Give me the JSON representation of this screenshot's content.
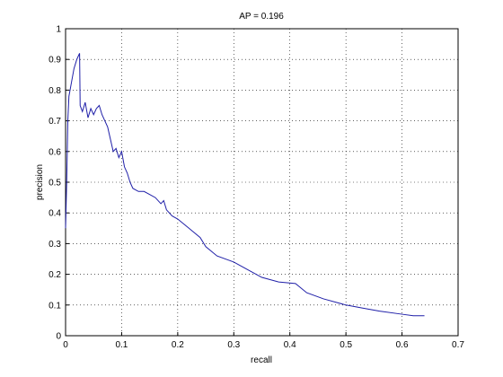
{
  "chart_data": {
    "type": "line",
    "title": "AP = 0.196",
    "x_label": "recall",
    "y_label": "precision",
    "x": [
      0,
      0.002,
      0.004,
      0.006,
      0.01,
      0.015,
      0.02,
      0.025,
      0.026,
      0.03,
      0.035,
      0.04,
      0.045,
      0.05,
      0.055,
      0.06,
      0.065,
      0.07,
      0.075,
      0.08,
      0.085,
      0.09,
      0.095,
      0.1,
      0.105,
      0.11,
      0.115,
      0.12,
      0.13,
      0.14,
      0.15,
      0.16,
      0.17,
      0.175,
      0.18,
      0.19,
      0.2,
      0.22,
      0.24,
      0.25,
      0.27,
      0.3,
      0.32,
      0.35,
      0.38,
      0.41,
      0.43,
      0.46,
      0.5,
      0.53,
      0.56,
      0.6,
      0.62,
      0.64
    ],
    "series": [
      {
        "name": "precision",
        "color": "#1f1fa8",
        "values": [
          0.35,
          0.5,
          0.7,
          0.78,
          0.82,
          0.87,
          0.9,
          0.92,
          0.75,
          0.73,
          0.76,
          0.71,
          0.74,
          0.72,
          0.74,
          0.75,
          0.72,
          0.7,
          0.68,
          0.64,
          0.6,
          0.61,
          0.58,
          0.6,
          0.55,
          0.53,
          0.5,
          0.48,
          0.47,
          0.47,
          0.46,
          0.45,
          0.43,
          0.44,
          0.41,
          0.39,
          0.38,
          0.35,
          0.32,
          0.29,
          0.26,
          0.24,
          0.22,
          0.19,
          0.175,
          0.17,
          0.14,
          0.12,
          0.1,
          0.09,
          0.08,
          0.07,
          0.065,
          0.065
        ]
      }
    ],
    "xlim": [
      0,
      0.7
    ],
    "ylim": [
      0,
      1
    ],
    "xticks": [
      0,
      0.1,
      0.2,
      0.3,
      0.4,
      0.5,
      0.6,
      0.7
    ],
    "yticks": [
      0,
      0.1,
      0.2,
      0.3,
      0.4,
      0.5,
      0.6,
      0.7,
      0.8,
      0.9,
      1
    ],
    "grid": true
  }
}
